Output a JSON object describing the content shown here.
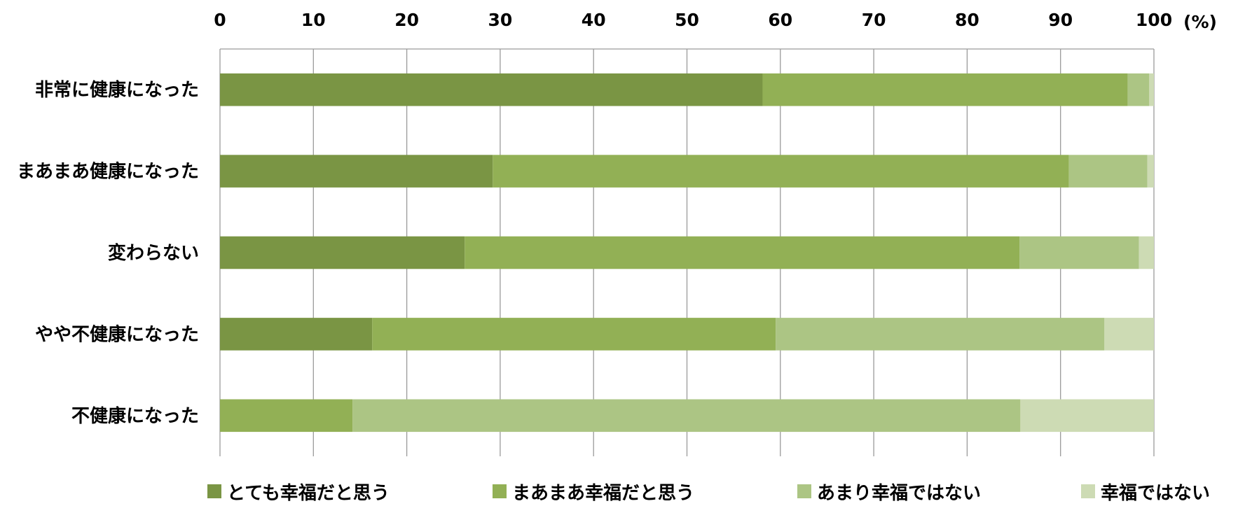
{
  "chart_data": {
    "type": "bar",
    "orientation": "horizontal",
    "stacked": true,
    "unit_label": "(%)",
    "xlim": [
      0,
      100
    ],
    "xticks": [
      "0",
      "10",
      "20",
      "30",
      "40",
      "50",
      "60",
      "70",
      "80",
      "90",
      "100"
    ],
    "categories": [
      "非常に健康になった",
      "まあまあ健康になった",
      "変わらない",
      "やや不健康になった",
      "不健康になった"
    ],
    "series": [
      {
        "name": "とても幸福だと思う",
        "color": "#7a9544",
        "values": [
          58.1,
          29.2,
          26.2,
          16.3,
          0
        ]
      },
      {
        "name": "まあまあ幸福だと思う",
        "color": "#92b055",
        "values": [
          39.1,
          61.7,
          59.4,
          43.2,
          14.2
        ]
      },
      {
        "name": "あまり幸福ではない",
        "color": "#acc584",
        "values": [
          2.3,
          8.4,
          12.8,
          35.2,
          71.5
        ]
      },
      {
        "name": "幸福ではない",
        "color": "#cddbb4",
        "values": [
          0.5,
          0.7,
          1.6,
          5.3,
          14.3
        ]
      }
    ],
    "grid": true,
    "axis_position": "top",
    "legend_position": "bottom"
  }
}
